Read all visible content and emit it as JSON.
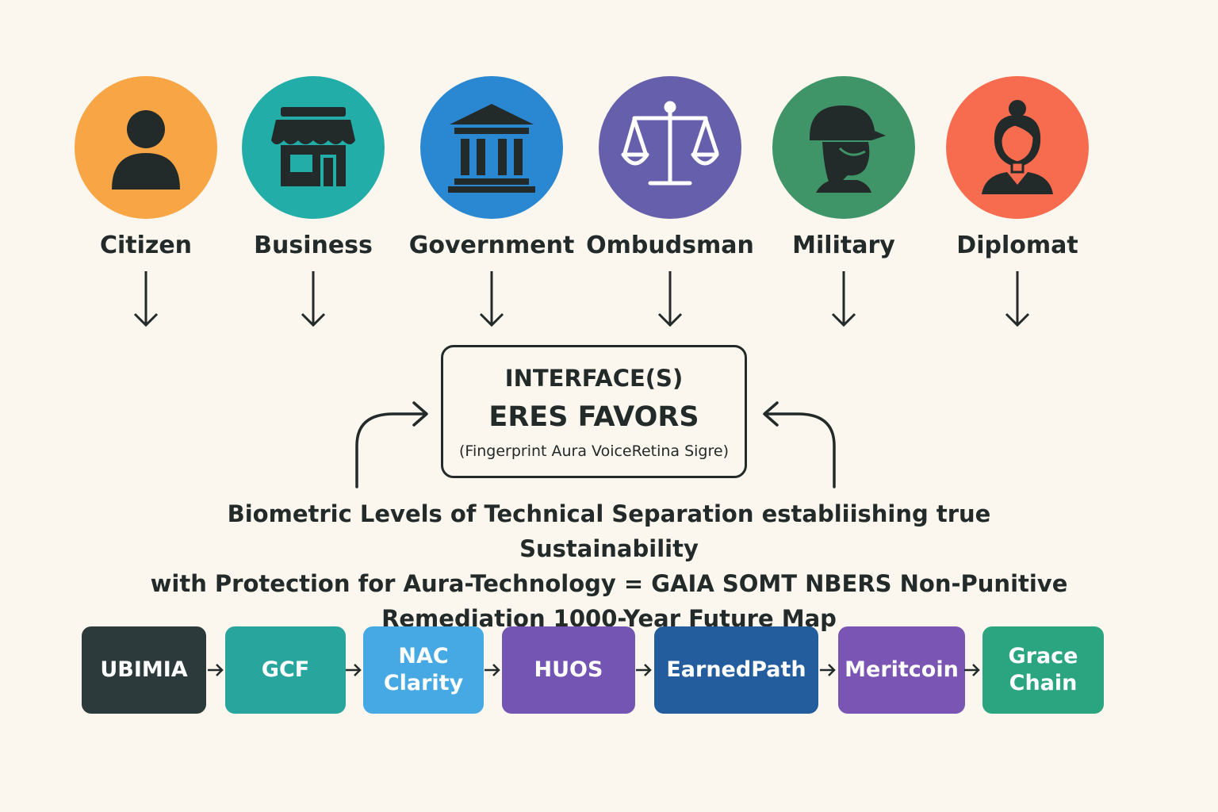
{
  "colors": {
    "background": "#fcf7ee",
    "ink": "#222a2a"
  },
  "actors": [
    {
      "label": "Citizen",
      "icon": "person-icon",
      "color": "#f8a545"
    },
    {
      "label": "Business",
      "icon": "storefront-icon",
      "color": "#22ada8"
    },
    {
      "label": "Government",
      "icon": "capitol-building-icon",
      "color": "#2a87d2"
    },
    {
      "label": "Ombudsman",
      "icon": "scales-of-justice-icon",
      "color": "#6660ac"
    },
    {
      "label": "Military",
      "icon": "soldier-helmet-icon",
      "color": "#3f9468"
    },
    {
      "label": "Diplomat",
      "icon": "woman-diplomat-icon",
      "color": "#f76c4e"
    }
  ],
  "interface": {
    "line1": "INTERFACE(S)",
    "line2": "ERES FAVORS",
    "line3": "(Fingerprint Aura VoiceRetina Sigre)"
  },
  "statement": {
    "line1": "Biometric Levels of Technical Separation establiishing true Sustainability",
    "line2": "with Protection for Aura-Technology = GAIA SOMT NBERS Non-Punitive",
    "line3": "Remediation 1000-Year Future Map"
  },
  "stages": [
    {
      "label": "UBIMIA",
      "color": "#2d3a3b"
    },
    {
      "label": "GCF",
      "color": "#28a69d"
    },
    {
      "label": "NAC\nClarity",
      "color": "#46a9e3"
    },
    {
      "label": "HUOS",
      "color": "#7555b3"
    },
    {
      "label": "EarnedPath",
      "color": "#245d9e"
    },
    {
      "label": "Meritcoin",
      "color": "#7a55b4"
    },
    {
      "label": "Grace\nChain",
      "color": "#2aa57f"
    }
  ]
}
